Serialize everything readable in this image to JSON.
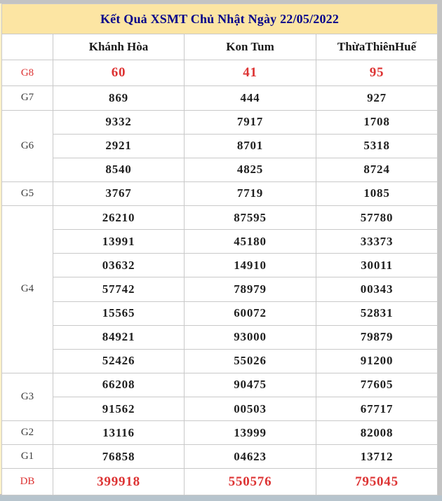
{
  "page": {
    "title": "Kết Quả XSMT Chủ Nhật Ngày 22/05/2022"
  },
  "table": {
    "columns": [
      "",
      "Khánh Hòa",
      "Kon Tum",
      "ThừaThiênHuế"
    ],
    "groups": [
      {
        "label": "G8",
        "highlight": true,
        "rows": [
          [
            "60",
            "41",
            "95"
          ]
        ]
      },
      {
        "label": "G7",
        "highlight": false,
        "rows": [
          [
            "869",
            "444",
            "927"
          ]
        ]
      },
      {
        "label": "G6",
        "highlight": false,
        "rows": [
          [
            "9332",
            "7917",
            "1708"
          ],
          [
            "2921",
            "8701",
            "5318"
          ],
          [
            "8540",
            "4825",
            "8724"
          ]
        ]
      },
      {
        "label": "G5",
        "highlight": false,
        "rows": [
          [
            "3767",
            "7719",
            "1085"
          ]
        ]
      },
      {
        "label": "G4",
        "highlight": false,
        "rows": [
          [
            "26210",
            "87595",
            "57780"
          ],
          [
            "13991",
            "45180",
            "33373"
          ],
          [
            "03632",
            "14910",
            "30011"
          ],
          [
            "57742",
            "78979",
            "00343"
          ],
          [
            "15565",
            "60072",
            "52831"
          ],
          [
            "84921",
            "93000",
            "79879"
          ],
          [
            "52426",
            "55026",
            "91200"
          ]
        ]
      },
      {
        "label": "G3",
        "highlight": false,
        "rows": [
          [
            "66208",
            "90475",
            "77605"
          ],
          [
            "91562",
            "00503",
            "67717"
          ]
        ]
      },
      {
        "label": "G2",
        "highlight": false,
        "rows": [
          [
            "13116",
            "13999",
            "82008"
          ]
        ]
      },
      {
        "label": "G1",
        "highlight": false,
        "rows": [
          [
            "76858",
            "04623",
            "13712"
          ]
        ]
      },
      {
        "label": "DB",
        "highlight": true,
        "rows": [
          [
            "399918",
            "550576",
            "795045"
          ]
        ]
      }
    ]
  },
  "colors": {
    "title_bar_bg": "#fce5a3",
    "title_text": "#00008b",
    "highlight_text": "#dd3333",
    "value_text": "#1f1f1f",
    "label_text": "#3d3d3d",
    "cell_border": "#c9c9c9",
    "page_edge": "#c3c3c3",
    "bottom_strip": "#b7c4cd"
  }
}
